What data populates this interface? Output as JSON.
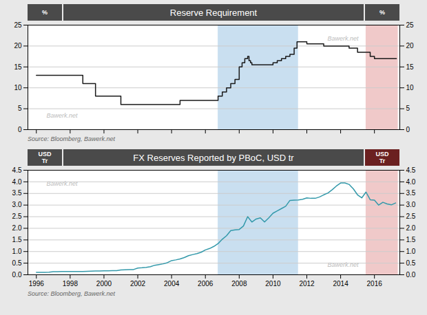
{
  "chart_data": [
    {
      "type": "step",
      "title": "Reserve Requirement",
      "ylabel": "%",
      "y2label": "%",
      "x": [
        1996,
        1997.5,
        1998.5,
        1998.75,
        1999.5,
        2000,
        2001,
        2002,
        2003,
        2004,
        2004.5,
        2005,
        2006,
        2006.5,
        2006.75,
        2007.0,
        2007.25,
        2007.5,
        2007.75,
        2008.0,
        2008.17,
        2008.33,
        2008.5,
        2008.58,
        2008.67,
        2008.75,
        2009.0,
        2009.5,
        2010.0,
        2010.25,
        2010.5,
        2010.75,
        2011.0,
        2011.25,
        2011.42,
        2011.75,
        2012.0,
        2013.0,
        2014.0,
        2014.5,
        2015.0,
        2015.5,
        2015.75,
        2016.0,
        2016.25,
        2016.5,
        2016.75,
        2017.0,
        2017.3
      ],
      "values": [
        13,
        13,
        13,
        11,
        8,
        8,
        6,
        6,
        6,
        6,
        7,
        7,
        7,
        7,
        8,
        9,
        10,
        11,
        12,
        15,
        16,
        17,
        17.5,
        16.5,
        16,
        15.5,
        15.5,
        15.5,
        16,
        16.5,
        17,
        17.5,
        18,
        19.5,
        21,
        21,
        20.5,
        20,
        20,
        19.5,
        18.5,
        18.5,
        17.5,
        17,
        17,
        17,
        17,
        17,
        17
      ],
      "color": "#1a1a1a",
      "spans": [
        {
          "start": 2006.75,
          "end": 2011.5,
          "color": "#c9dff0"
        },
        {
          "start": 2015.5,
          "end": 2017.4,
          "color": "#f0c9c9"
        }
      ],
      "xlim": [
        1995.5,
        2017.5
      ],
      "xticks": [
        1996,
        1998,
        2000,
        2002,
        2004,
        2006,
        2008,
        2010,
        2012,
        2014,
        2016
      ],
      "ylim": [
        0,
        25
      ],
      "yticks": [
        0,
        5,
        10,
        15,
        20,
        25
      ],
      "y2lim": [
        0,
        25
      ],
      "y2ticks": [
        0,
        5,
        10,
        15,
        20,
        25
      ],
      "grid": true,
      "tick_labels": "y",
      "annotations": [
        "Bawerk.net",
        "Bawerk.net"
      ],
      "source": "Source: Bloomberg, Bawerk.net"
    },
    {
      "type": "line",
      "title": "FX Reserves Reported by PBoC, USD tr",
      "ylabel": "USD\nTr",
      "y2label": "USD\nTr",
      "x": [
        1996,
        1996.25,
        1996.5,
        1996.75,
        1997,
        1997.25,
        1997.5,
        1997.75,
        1998,
        1998.25,
        1998.5,
        1998.75,
        1999,
        1999.25,
        1999.5,
        1999.75,
        2000,
        2000.25,
        2000.5,
        2000.75,
        2001,
        2001.25,
        2001.5,
        2001.75,
        2002,
        2002.25,
        2002.5,
        2002.75,
        2003,
        2003.25,
        2003.5,
        2003.75,
        2004,
        2004.25,
        2004.5,
        2004.75,
        2005,
        2005.25,
        2005.5,
        2005.75,
        2006,
        2006.25,
        2006.5,
        2006.75,
        2007,
        2007.25,
        2007.5,
        2007.75,
        2008,
        2008.25,
        2008.5,
        2008.75,
        2009,
        2009.25,
        2009.5,
        2009.75,
        2010,
        2010.25,
        2010.5,
        2010.75,
        2011,
        2011.25,
        2011.5,
        2011.75,
        2012,
        2012.25,
        2012.5,
        2012.75,
        2013,
        2013.25,
        2013.5,
        2013.75,
        2014,
        2014.25,
        2014.5,
        2014.75,
        2015,
        2015.25,
        2015.5,
        2015.75,
        2016,
        2016.25,
        2016.5,
        2016.75,
        2017,
        2017.25
      ],
      "values": [
        0.1,
        0.1,
        0.1,
        0.11,
        0.13,
        0.13,
        0.14,
        0.14,
        0.14,
        0.14,
        0.14,
        0.14,
        0.15,
        0.155,
        0.16,
        0.16,
        0.168,
        0.17,
        0.175,
        0.18,
        0.21,
        0.215,
        0.22,
        0.225,
        0.29,
        0.3,
        0.32,
        0.35,
        0.41,
        0.44,
        0.47,
        0.52,
        0.61,
        0.64,
        0.68,
        0.74,
        0.82,
        0.87,
        0.91,
        0.97,
        1.07,
        1.13,
        1.22,
        1.34,
        1.53,
        1.68,
        1.9,
        1.93,
        1.95,
        2.1,
        2.5,
        2.27,
        2.4,
        2.45,
        2.27,
        2.45,
        2.65,
        2.75,
        2.85,
        2.95,
        3.2,
        3.21,
        3.22,
        3.25,
        3.31,
        3.29,
        3.29,
        3.35,
        3.44,
        3.52,
        3.66,
        3.82,
        3.95,
        3.95,
        3.89,
        3.7,
        3.44,
        3.31,
        3.56,
        3.23,
        3.21,
        3.0,
        3.12,
        3.05,
        3.01,
        3.09
      ],
      "color": "#3399aa",
      "spans": [
        {
          "start": 2006.75,
          "end": 2011.5,
          "color": "#c9dff0"
        },
        {
          "start": 2015.5,
          "end": 2017.4,
          "color": "#f0c9c9"
        }
      ],
      "xlim": [
        1995.5,
        2017.5
      ],
      "xticks": [
        1996,
        1998,
        2000,
        2002,
        2004,
        2006,
        2008,
        2010,
        2012,
        2014,
        2016
      ],
      "ylim": [
        0,
        4.5
      ],
      "yticks": [
        {
          "value": 0,
          "label": "0.0"
        },
        0.5,
        {
          "value": 1,
          "label": "1.0"
        },
        1.5,
        {
          "value": 2,
          "label": "2.0"
        },
        2.5,
        {
          "value": 3,
          "label": "3.0"
        },
        3.5,
        {
          "value": 4,
          "label": "4.0"
        },
        4.5
      ],
      "y2lim": [
        0,
        4.5
      ],
      "y2ticks": [
        {
          "value": 0,
          "label": "0.0"
        },
        0.5,
        {
          "value": 1,
          "label": "1.0"
        },
        1.5,
        {
          "value": 2,
          "label": "2.0"
        },
        2.5,
        {
          "value": 3,
          "label": "3.0"
        },
        3.5,
        {
          "value": 4,
          "label": "4.0"
        },
        4.5
      ],
      "grid": true,
      "annotations": [
        "Bawerk.net",
        "Bawerk.net"
      ],
      "source": "Source: Bloomberg, Bawerk.net"
    }
  ]
}
